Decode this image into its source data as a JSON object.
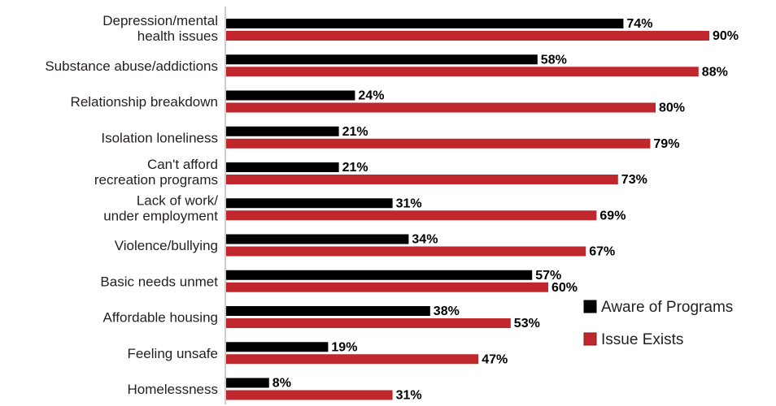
{
  "chart_data": {
    "type": "bar",
    "orientation": "horizontal",
    "categories": [
      [
        "Depression/mental",
        "health issues"
      ],
      [
        "Substance abuse/addictions"
      ],
      [
        "Relationship breakdown"
      ],
      [
        "Isolation loneliness"
      ],
      [
        "Can't afford",
        "recreation programs"
      ],
      [
        "Lack of work/",
        "under employment"
      ],
      [
        "Violence/bullying"
      ],
      [
        "Basic needs unmet"
      ],
      [
        "Affordable housing"
      ],
      [
        "Feeling unsafe"
      ],
      [
        "Homelessness"
      ]
    ],
    "series": [
      {
        "name": "Aware of Programs",
        "color": "#000000",
        "values": [
          74,
          58,
          24,
          21,
          21,
          31,
          34,
          57,
          38,
          19,
          8
        ]
      },
      {
        "name": "Issue Exists",
        "color": "#c0272d",
        "values": [
          90,
          88,
          80,
          79,
          73,
          69,
          67,
          60,
          53,
          47,
          31
        ]
      }
    ],
    "value_suffix": "%",
    "xlim": [
      0,
      100
    ],
    "grid": false,
    "legend_position": "right",
    "title": "",
    "xlabel": "",
    "ylabel": ""
  }
}
